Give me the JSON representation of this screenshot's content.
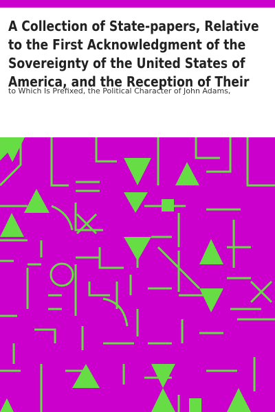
{
  "book": {
    "title": "A Collection of State-papers, Relative to the First Acknowledgment of the Sovereignty of the United States of America, and the Reception of Their Minister Plenipotentiary, by Their High Mightinesses the States General of the United Netherlands",
    "subtitle": "to Which Is Prefixed, the Political Character of John Adams,"
  },
  "colors": {
    "accent_bar": "#cc00cc",
    "pattern_background": "#cc00cc",
    "pattern_foreground": "#66dd44",
    "title_text": "#222222"
  }
}
